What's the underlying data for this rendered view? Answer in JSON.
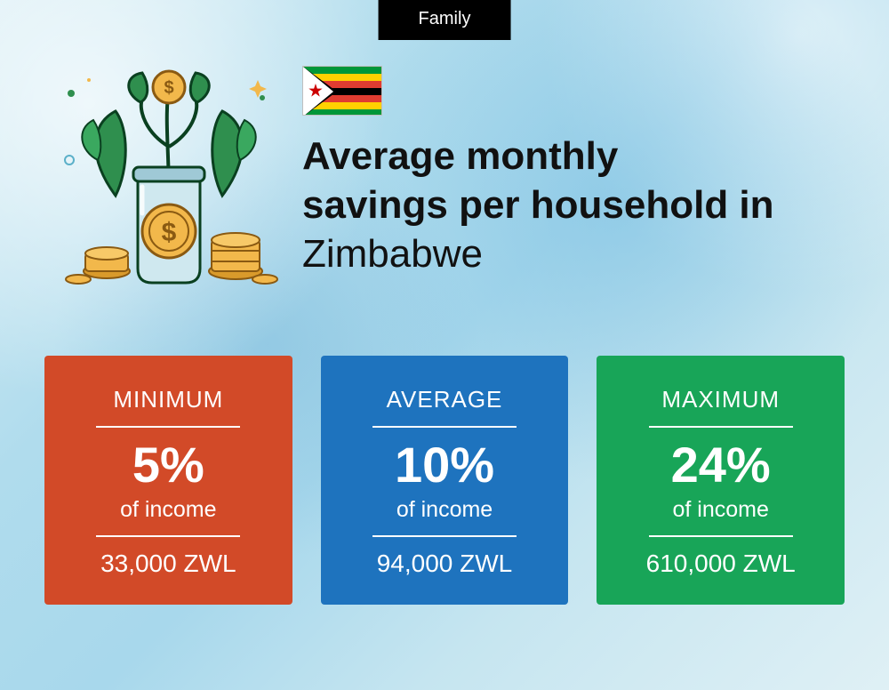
{
  "badge": "Family",
  "title_bold_a": "Average monthly",
  "title_bold_b": "savings per household in",
  "title_country": "Zimbabwe",
  "flag": {
    "stripes": [
      "#009739",
      "#FFD100",
      "#E03C31",
      "#000000",
      "#E03C31",
      "#FFD100",
      "#009739"
    ]
  },
  "cards": [
    {
      "label": "MINIMUM",
      "pct": "5%",
      "sub": "of income",
      "amount": "33,000 ZWL",
      "bg": "#D24A28"
    },
    {
      "label": "AVERAGE",
      "pct": "10%",
      "sub": "of income",
      "amount": "94,000 ZWL",
      "bg": "#1E73BE"
    },
    {
      "label": "MAXIMUM",
      "pct": "24%",
      "sub": "of income",
      "amount": "610,000 ZWL",
      "bg": "#18A558"
    }
  ],
  "style": {
    "badge_bg": "#000000",
    "badge_fg": "#ffffff",
    "title_color": "#111111",
    "title_fontsize": 44,
    "card_label_fontsize": 26,
    "card_pct_fontsize": 56,
    "card_amount_fontsize": 28,
    "card_text_color": "#ffffff",
    "body_bg_gradient": [
      "#d8eef5",
      "#b0dced",
      "#a8d8ec",
      "#c5e5f0",
      "#dff0f5"
    ]
  },
  "illustration": {
    "description": "savings-jar-plant-coins",
    "jar_color": "#cfe8ef",
    "coin_color": "#f2b84b",
    "leaf_color": "#2f8f4e"
  }
}
